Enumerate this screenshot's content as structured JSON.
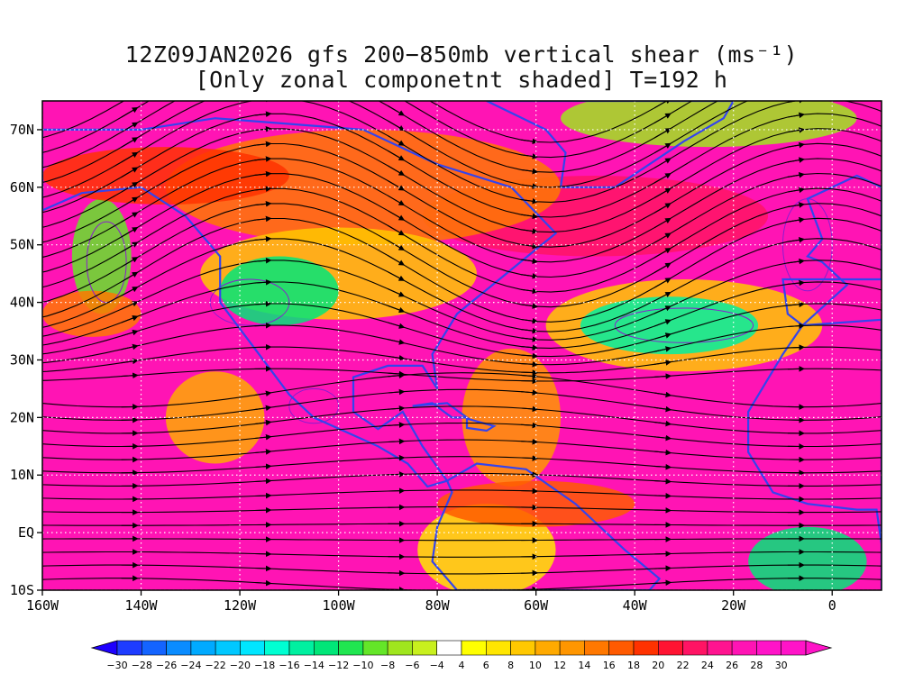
{
  "title": {
    "line1": "12Z09JAN2026 gfs 200−850mb vertical shear (ms⁻¹)",
    "line2": "[Only zonal componetnt shaded] T=192 h"
  },
  "map": {
    "lon_range": [
      -160,
      10
    ],
    "lat_range": [
      -10,
      75
    ],
    "lon_ticks": [
      -160,
      -140,
      -120,
      -100,
      -80,
      -60,
      -40,
      -20,
      0
    ],
    "lon_tick_labels": [
      "160W",
      "140W",
      "120W",
      "100W",
      "80W",
      "60W",
      "40W",
      "20W",
      "0"
    ],
    "lat_ticks": [
      -10,
      0,
      10,
      20,
      30,
      40,
      50,
      60,
      70
    ],
    "lat_tick_labels": [
      "10S",
      "EQ",
      "10N",
      "20N",
      "30N",
      "40N",
      "50N",
      "60N",
      "70N"
    ],
    "grid": "dotted white, every 20° lon / 10° lat",
    "coastline_color": "#3344ee",
    "contour_color": "#8a1ccf",
    "streamline_color": "#000000"
  },
  "colorbar": {
    "labels": [
      "−30",
      "−28",
      "−26",
      "−24",
      "−22",
      "−20",
      "−18",
      "−16",
      "−14",
      "−12",
      "−10",
      "−8",
      "−6",
      "−4",
      "4",
      "6",
      "8",
      "10",
      "12",
      "14",
      "16",
      "18",
      "20",
      "22",
      "24",
      "26",
      "28",
      "30"
    ],
    "colors": [
      "#1e00ff",
      "#1e3cff",
      "#1464ff",
      "#0a8cff",
      "#00aaff",
      "#00c8ff",
      "#00e6ff",
      "#00ffd2",
      "#00f0a0",
      "#00e678",
      "#20e650",
      "#64e628",
      "#a0e61e",
      "#c8f01e",
      "#ffffff",
      "#ffff00",
      "#ffe600",
      "#ffc800",
      "#ffaa00",
      "#ff9600",
      "#ff7800",
      "#ff5a00",
      "#ff3200",
      "#ff1432",
      "#ff1464",
      "#ff1490",
      "#ff14b4",
      "#ff14c8",
      "#ff14c8"
    ],
    "under_color": "#1e00ff",
    "over_color": "#ff14c8"
  }
}
